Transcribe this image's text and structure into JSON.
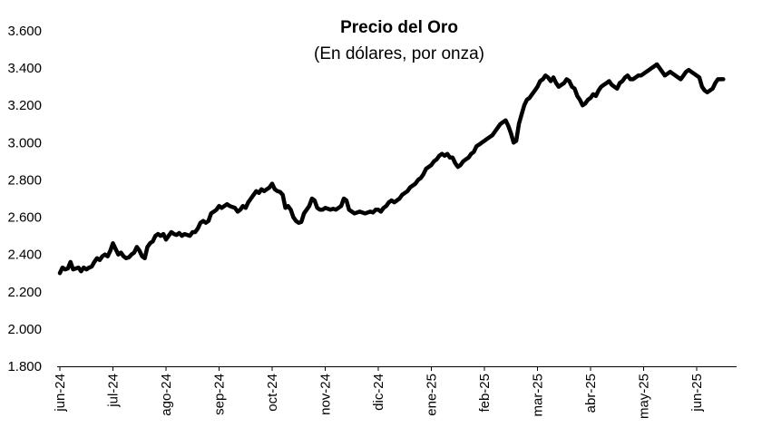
{
  "chart_data": {
    "type": "line",
    "title": "Precio del Oro",
    "subtitle": "(En dólares, por onza)",
    "xlabel": "",
    "ylabel": "",
    "ylim": [
      1800,
      3600
    ],
    "y_ticks": [
      "1.800",
      "2.000",
      "2.200",
      "2.400",
      "2.600",
      "2.800",
      "3.000",
      "3.200",
      "3.400",
      "3.600"
    ],
    "y_tick_values": [
      1800,
      2000,
      2200,
      2400,
      2600,
      2800,
      3000,
      3200,
      3400,
      3600
    ],
    "categories": [
      "jun-24",
      "jul-24",
      "ago-24",
      "sep-24",
      "oct-24",
      "nov-24",
      "dic-24",
      "ene-25",
      "feb-25",
      "mar-25",
      "abr-25",
      "may-25",
      "jun-25"
    ],
    "x_months": [
      0,
      1,
      2,
      3,
      4,
      5,
      6,
      7,
      8,
      9,
      10,
      11,
      12
    ],
    "grid": false,
    "legend": "none",
    "line_color": "#000000",
    "series": [
      {
        "x": [
          0.0,
          0.05,
          0.1,
          0.15,
          0.2,
          0.25,
          0.3,
          0.35,
          0.4,
          0.45,
          0.5,
          0.55,
          0.6,
          0.65,
          0.7,
          0.75,
          0.8,
          0.85,
          0.9,
          0.95,
          1.0,
          1.05,
          1.1,
          1.15,
          1.2,
          1.25,
          1.3,
          1.35,
          1.4,
          1.45,
          1.5,
          1.55,
          1.6,
          1.65,
          1.7,
          1.75,
          1.8,
          1.85,
          1.9,
          1.95,
          2.0,
          2.05,
          2.1,
          2.15,
          2.2,
          2.25,
          2.3,
          2.35,
          2.4,
          2.45,
          2.5,
          2.55,
          2.6,
          2.65,
          2.7,
          2.75,
          2.8,
          2.85,
          2.9,
          2.95,
          3.0,
          3.05,
          3.1,
          3.15,
          3.2,
          3.25,
          3.3,
          3.35,
          3.4,
          3.45,
          3.5,
          3.55,
          3.6,
          3.65,
          3.7,
          3.75,
          3.8,
          3.85,
          3.9,
          3.95,
          4.0,
          4.05,
          4.1,
          4.15,
          4.2,
          4.25,
          4.3,
          4.35,
          4.4,
          4.45,
          4.5,
          4.55,
          4.6,
          4.65,
          4.7,
          4.75,
          4.8,
          4.85,
          4.9,
          4.95,
          5.0,
          5.05,
          5.1,
          5.15,
          5.2,
          5.25,
          5.3,
          5.35,
          5.4,
          5.45,
          5.5,
          5.55,
          5.6,
          5.65,
          5.7,
          5.75,
          5.8,
          5.85,
          5.9,
          5.95,
          6.0,
          6.05,
          6.1,
          6.15,
          6.2,
          6.25,
          6.3,
          6.35,
          6.4,
          6.45,
          6.5,
          6.55,
          6.6,
          6.65,
          6.7,
          6.75,
          6.8,
          6.85,
          6.9,
          6.95,
          7.0,
          7.05,
          7.1,
          7.15,
          7.2,
          7.25,
          7.3,
          7.35,
          7.4,
          7.45,
          7.5,
          7.55,
          7.6,
          7.65,
          7.7,
          7.75,
          7.8,
          7.85,
          7.9,
          7.95,
          8.0,
          8.05,
          8.1,
          8.15,
          8.2,
          8.25,
          8.3,
          8.35,
          8.4,
          8.45,
          8.5,
          8.55,
          8.6,
          8.65,
          8.7,
          8.75,
          8.8,
          8.85,
          8.9,
          8.95,
          9.0,
          9.05,
          9.1,
          9.15,
          9.2,
          9.25,
          9.3,
          9.35,
          9.4,
          9.45,
          9.5,
          9.55,
          9.6,
          9.65,
          9.7,
          9.75,
          9.8,
          9.85,
          9.9,
          9.95,
          10.0,
          10.05,
          10.1,
          10.15,
          10.2,
          10.25,
          10.3,
          10.35,
          10.4,
          10.45,
          10.5,
          10.55,
          10.6,
          10.65,
          10.7,
          10.75,
          10.8,
          10.85,
          10.9,
          10.95,
          11.0,
          11.05,
          11.1,
          11.15,
          11.2,
          11.25,
          11.3,
          11.35,
          11.4,
          11.45,
          11.5,
          11.55,
          11.6,
          11.65,
          11.7,
          11.75,
          11.8,
          11.85,
          11.9,
          11.95,
          12.0,
          12.05,
          12.1,
          12.15,
          12.2,
          12.25,
          12.3,
          12.35,
          12.4,
          12.45,
          12.5
        ],
        "values": [
          2300,
          2330,
          2320,
          2325,
          2360,
          2320,
          2325,
          2330,
          2310,
          2330,
          2320,
          2330,
          2335,
          2360,
          2380,
          2370,
          2390,
          2400,
          2390,
          2420,
          2460,
          2430,
          2400,
          2410,
          2390,
          2380,
          2385,
          2400,
          2410,
          2440,
          2420,
          2390,
          2380,
          2440,
          2460,
          2470,
          2500,
          2510,
          2500,
          2510,
          2480,
          2500,
          2520,
          2510,
          2505,
          2515,
          2500,
          2510,
          2505,
          2500,
          2520,
          2520,
          2540,
          2570,
          2580,
          2570,
          2580,
          2620,
          2630,
          2640,
          2660,
          2650,
          2660,
          2670,
          2660,
          2655,
          2650,
          2630,
          2640,
          2660,
          2650,
          2680,
          2700,
          2720,
          2740,
          2730,
          2750,
          2740,
          2750,
          2760,
          2780,
          2750,
          2740,
          2735,
          2720,
          2650,
          2660,
          2640,
          2600,
          2580,
          2570,
          2575,
          2620,
          2640,
          2660,
          2700,
          2690,
          2650,
          2640,
          2640,
          2650,
          2645,
          2640,
          2645,
          2640,
          2650,
          2660,
          2700,
          2690,
          2640,
          2630,
          2620,
          2625,
          2630,
          2625,
          2620,
          2625,
          2630,
          2625,
          2640,
          2640,
          2630,
          2650,
          2660,
          2680,
          2690,
          2680,
          2690,
          2700,
          2720,
          2730,
          2740,
          2760,
          2770,
          2780,
          2800,
          2810,
          2830,
          2860,
          2870,
          2880,
          2900,
          2910,
          2930,
          2940,
          2930,
          2940,
          2920,
          2920,
          2890,
          2870,
          2880,
          2900,
          2910,
          2920,
          2940,
          2950,
          2980,
          2990,
          3000,
          3010,
          3020,
          3030,
          3040,
          3060,
          3080,
          3100,
          3110,
          3120,
          3090,
          3050,
          3000,
          3010,
          3100,
          3150,
          3200,
          3230,
          3240,
          3260,
          3280,
          3300,
          3330,
          3340,
          3360,
          3350,
          3330,
          3350,
          3320,
          3300,
          3310,
          3320,
          3340,
          3330,
          3300,
          3290,
          3250,
          3230,
          3200,
          3210,
          3230,
          3240,
          3260,
          3250,
          3280,
          3300,
          3310,
          3320,
          3330,
          3310,
          3300,
          3290,
          3320,
          3330,
          3350,
          3360,
          3340,
          3340,
          3350,
          3360,
          3360,
          3370,
          3380,
          3390,
          3400,
          3410,
          3420,
          3400,
          3380,
          3360,
          3370,
          3380,
          3370,
          3360,
          3350,
          3340,
          3360,
          3380,
          3390,
          3380,
          3370,
          3360,
          3350,
          3300,
          3280,
          3270,
          3280,
          3290,
          3320,
          3340,
          3340,
          3340
        ]
      }
    ]
  }
}
